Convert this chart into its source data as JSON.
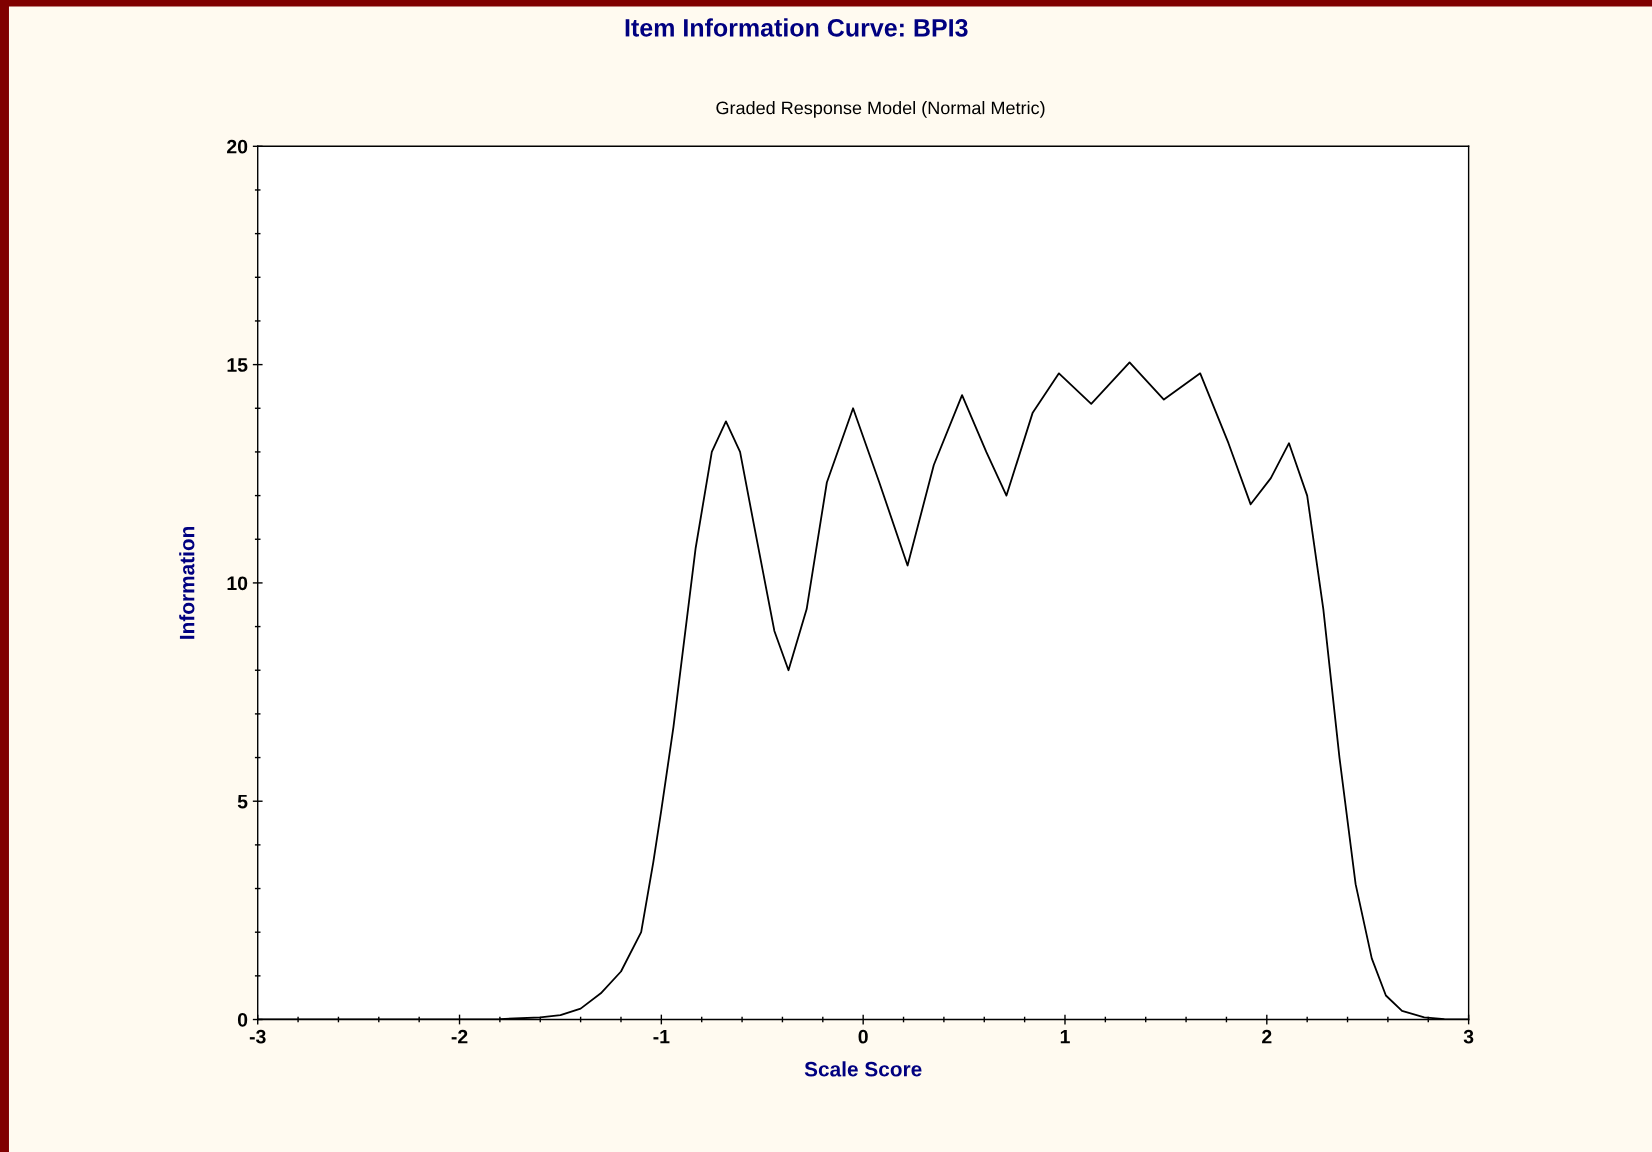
{
  "chart_data": {
    "type": "line",
    "title": "Item Information Curve: BPI3",
    "subtitle": "Graded Response Model (Normal Metric)",
    "xlabel": "Scale Score",
    "ylabel": "Information",
    "series": [
      {
        "color": "#000000",
        "x": [
          -3,
          -2.5,
          -2,
          -1.8,
          -1.6,
          -1.5,
          -1.4,
          -1.3,
          -1.2,
          -1.1,
          -1.04,
          -1.0,
          -0.94,
          -0.83,
          -0.75,
          -0.68,
          -0.61,
          -0.54,
          -0.44,
          -0.37,
          -0.28,
          -0.18,
          -0.05,
          0.08,
          0.22,
          0.35,
          0.49,
          0.61,
          0.71,
          0.84,
          0.97,
          1.13,
          1.32,
          1.49,
          1.67,
          1.81,
          1.92,
          2.02,
          2.11,
          2.2,
          2.28,
          2.36,
          2.44,
          2.52,
          2.59,
          2.67,
          2.78,
          2.88,
          3
        ],
        "values": [
          0,
          0,
          0,
          0.01,
          0.05,
          0.1,
          0.25,
          0.6,
          1.1,
          2.0,
          3.6,
          4.8,
          6.7,
          10.8,
          13.0,
          13.7,
          13.0,
          11.3,
          8.9,
          8.0,
          9.4,
          12.3,
          14.0,
          12.3,
          10.4,
          12.7,
          14.3,
          13.0,
          12.0,
          13.9,
          14.8,
          14.1,
          15.05,
          14.2,
          14.8,
          13.2,
          11.8,
          12.4,
          13.2,
          12.0,
          9.4,
          6.0,
          3.1,
          1.4,
          0.55,
          0.2,
          0.05,
          0.01,
          0
        ]
      }
    ],
    "xlim": [
      -3,
      3
    ],
    "ylim": [
      0,
      20
    ],
    "xticks": [
      -3,
      {
        "value": -2.8,
        "label": null
      },
      {
        "value": -2.6,
        "label": null
      },
      {
        "value": -2.4,
        "label": null
      },
      {
        "value": -2.2,
        "label": null
      },
      -2,
      {
        "value": -1.8,
        "label": null
      },
      {
        "value": -1.6,
        "label": null
      },
      {
        "value": -1.4,
        "label": null
      },
      {
        "value": -1.2,
        "label": null
      },
      -1,
      {
        "value": -0.8,
        "label": null
      },
      {
        "value": -0.6,
        "label": null
      },
      {
        "value": -0.4,
        "label": null
      },
      {
        "value": -0.2,
        "label": null
      },
      0,
      {
        "value": 0.2,
        "label": null
      },
      {
        "value": 0.4,
        "label": null
      },
      {
        "value": 0.6,
        "label": null
      },
      {
        "value": 0.8,
        "label": null
      },
      1,
      {
        "value": 1.2,
        "label": null
      },
      {
        "value": 1.4,
        "label": null
      },
      {
        "value": 1.6,
        "label": null
      },
      {
        "value": 1.8,
        "label": null
      },
      2,
      {
        "value": 2.2,
        "label": null
      },
      {
        "value": 2.4,
        "label": null
      },
      {
        "value": 2.6,
        "label": null
      },
      {
        "value": 2.8,
        "label": null
      },
      3
    ],
    "yticks": [
      0,
      {
        "value": 1,
        "label": null
      },
      {
        "value": 2,
        "label": null
      },
      {
        "value": 3,
        "label": null
      },
      {
        "value": 4,
        "label": null
      },
      5,
      {
        "value": 6,
        "label": null
      },
      {
        "value": 7,
        "label": null
      },
      {
        "value": 8,
        "label": null
      },
      {
        "value": 9,
        "label": null
      },
      10,
      {
        "value": 11,
        "label": null
      },
      {
        "value": 12,
        "label": null
      },
      {
        "value": 13,
        "label": null
      },
      {
        "value": 14,
        "label": null
      },
      15,
      {
        "value": 16,
        "label": null
      },
      {
        "value": 17,
        "label": null
      },
      {
        "value": 18,
        "label": null
      },
      {
        "value": 19,
        "label": null
      },
      20
    ],
    "grid": false,
    "legend": false,
    "marker": "none",
    "line_style": "solid"
  }
}
